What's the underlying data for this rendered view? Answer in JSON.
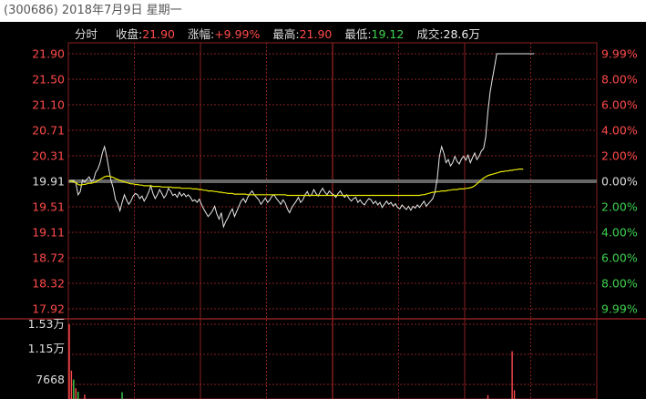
{
  "window": {
    "title": "(300686) 2018年7月9日 星期一"
  },
  "info_bar": {
    "mode": "分时",
    "close_label": "收盘:",
    "close_value": "21.90",
    "change_label": "涨幅:",
    "change_value": "+9.99%",
    "high_label": "最高:",
    "high_value": "21.90",
    "low_label": "最低:",
    "low_value": "19.12",
    "volume_label": "成交:",
    "volume_value": "28.6万"
  },
  "price_axis": [
    "21.90",
    "21.50",
    "21.10",
    "20.71",
    "20.31",
    "19.91",
    "19.51",
    "19.11",
    "18.72",
    "18.32",
    "17.92"
  ],
  "percent_axis": [
    "9.99%",
    "8.00%",
    "6.00%",
    "4.00%",
    "2.00%",
    "0.00%",
    "2.00%",
    "4.00%",
    "6.00%",
    "8.00%",
    "9.99%"
  ],
  "volume_axis": [
    "1.53万",
    "1.15万",
    "7668"
  ],
  "colors": {
    "up": "#ff4a4a",
    "down": "#3fd24f",
    "price_line": "#e8e8e8",
    "avg_line": "#e8e800",
    "grid": "#8a2020",
    "baseline": "#666666"
  },
  "chart_data": {
    "type": "line",
    "prev_close": 19.91,
    "ylim": [
      17.92,
      21.9
    ],
    "minutes_total": 240,
    "series": [
      {
        "values": [
          19.91,
          19.92,
          19.92,
          19.88,
          19.7,
          19.75,
          19.93,
          19.9,
          19.94,
          19.98,
          19.91,
          19.93,
          20.05,
          20.1,
          20.2,
          20.35,
          20.45,
          20.3,
          20.1,
          19.92,
          19.8,
          19.62,
          19.56,
          19.45,
          19.58,
          19.7,
          19.62,
          19.55,
          19.6,
          19.68,
          19.72,
          19.7,
          19.64,
          19.68,
          19.6,
          19.66,
          19.74,
          19.84,
          19.72,
          19.64,
          19.7,
          19.78,
          19.72,
          19.65,
          19.7,
          19.8,
          19.76,
          19.69,
          19.71,
          19.66,
          19.74,
          19.68,
          19.72,
          19.67,
          19.7,
          19.66,
          19.6,
          19.62,
          19.58,
          19.63,
          19.55,
          19.48,
          19.42,
          19.36,
          19.4,
          19.45,
          19.52,
          19.4,
          19.32,
          19.42,
          19.2,
          19.28,
          19.34,
          19.42,
          19.48,
          19.36,
          19.44,
          19.52,
          19.6,
          19.64,
          19.58,
          19.66,
          19.72,
          19.76,
          19.7,
          19.66,
          19.62,
          19.55,
          19.6,
          19.65,
          19.58,
          19.62,
          19.68,
          19.7,
          19.64,
          19.6,
          19.55,
          19.62,
          19.57,
          19.48,
          19.42,
          19.5,
          19.55,
          19.6,
          19.66,
          19.58,
          19.62,
          19.7,
          19.75,
          19.68,
          19.7,
          19.78,
          19.72,
          19.68,
          19.75,
          19.8,
          19.74,
          19.7,
          19.76,
          19.72,
          19.7,
          19.66,
          19.72,
          19.76,
          19.7,
          19.66,
          19.7,
          19.64,
          19.6,
          19.64,
          19.66,
          19.58,
          19.62,
          19.57,
          19.54,
          19.6,
          19.64,
          19.62,
          19.56,
          19.6,
          19.54,
          19.58,
          19.5,
          19.55,
          19.6,
          19.55,
          19.58,
          19.52,
          19.56,
          19.5,
          19.48,
          19.54,
          19.5,
          19.47,
          19.52,
          19.46,
          19.52,
          19.49,
          19.54,
          19.5,
          19.55,
          19.6,
          19.52,
          19.56,
          19.6,
          19.64,
          19.75,
          19.95,
          20.3,
          20.45,
          20.35,
          20.2,
          20.25,
          20.15,
          20.2,
          20.3,
          20.22,
          20.18,
          20.26,
          20.3,
          20.24,
          20.32,
          20.2,
          20.28,
          20.35,
          20.25,
          20.3,
          20.38,
          20.42,
          20.6,
          21.0,
          21.3,
          21.5,
          21.7,
          21.9,
          21.9,
          21.9,
          21.9,
          21.9,
          21.9,
          21.9,
          21.9,
          21.9,
          21.9,
          21.9,
          21.9,
          21.9,
          21.9,
          21.9,
          21.9,
          21.9,
          21.9
        ]
      },
      {
        "values": [
          19.91,
          19.91,
          19.9,
          19.89,
          19.86,
          19.85,
          19.86,
          19.86,
          19.87,
          19.88,
          19.88,
          19.89,
          19.9,
          19.92,
          19.94,
          19.96,
          19.98,
          19.99,
          19.99,
          19.98,
          19.97,
          19.95,
          19.94,
          19.92,
          19.91,
          19.9,
          19.89,
          19.88,
          19.87,
          19.87,
          19.86,
          19.86,
          19.85,
          19.85,
          19.84,
          19.84,
          19.84,
          19.84,
          19.83,
          19.83,
          19.83,
          19.83,
          19.82,
          19.82,
          19.82,
          19.82,
          19.82,
          19.81,
          19.81,
          19.81,
          19.81,
          19.8,
          19.8,
          19.8,
          19.8,
          19.8,
          19.79,
          19.79,
          19.79,
          19.78,
          19.78,
          19.77,
          19.77,
          19.76,
          19.76,
          19.76,
          19.75,
          19.75,
          19.74,
          19.74,
          19.73,
          19.73,
          19.72,
          19.72,
          19.72,
          19.71,
          19.71,
          19.71,
          19.71,
          19.71,
          19.71,
          19.7,
          19.7,
          19.7,
          19.7,
          19.7,
          19.7,
          19.7,
          19.7,
          19.7,
          19.7,
          19.7,
          19.7,
          19.7,
          19.7,
          19.7,
          19.7,
          19.7,
          19.7,
          19.69,
          19.69,
          19.69,
          19.69,
          19.69,
          19.69,
          19.69,
          19.69,
          19.69,
          19.69,
          19.69,
          19.69,
          19.69,
          19.69,
          19.69,
          19.69,
          19.69,
          19.69,
          19.69,
          19.69,
          19.69,
          19.69,
          19.69,
          19.69,
          19.69,
          19.69,
          19.69,
          19.69,
          19.69,
          19.69,
          19.69,
          19.69,
          19.69,
          19.69,
          19.69,
          19.69,
          19.69,
          19.69,
          19.69,
          19.69,
          19.69,
          19.69,
          19.69,
          19.69,
          19.69,
          19.69,
          19.69,
          19.69,
          19.69,
          19.69,
          19.69,
          19.69,
          19.69,
          19.69,
          19.69,
          19.69,
          19.69,
          19.69,
          19.69,
          19.69,
          19.69,
          19.7,
          19.7,
          19.71,
          19.72,
          19.73,
          19.74,
          19.74,
          19.75,
          19.75,
          19.76,
          19.76,
          19.76,
          19.77,
          19.77,
          19.78,
          19.78,
          19.78,
          19.79,
          19.79,
          19.79,
          19.8,
          19.8,
          19.81,
          19.82,
          19.84,
          19.87,
          19.9,
          19.93,
          19.96,
          19.98,
          20.0,
          20.01,
          20.02,
          20.03,
          20.04,
          20.05,
          20.06,
          20.06,
          20.07,
          20.07,
          20.08,
          20.08,
          20.09,
          20.09,
          20.1,
          20.1,
          20.1
        ]
      }
    ],
    "volume": {
      "ylim": [
        0,
        15300
      ],
      "bars": [
        {
          "minute": 0,
          "value": 15300,
          "dir": "up"
        },
        {
          "minute": 1,
          "value": 5800,
          "dir": "up"
        },
        {
          "minute": 2,
          "value": 4000,
          "dir": "down"
        },
        {
          "minute": 3,
          "value": 2200,
          "dir": "up"
        },
        {
          "minute": 4,
          "value": 1500,
          "dir": "down"
        },
        {
          "minute": 7,
          "value": 900,
          "dir": "up"
        },
        {
          "minute": 24,
          "value": 1400,
          "dir": "down"
        },
        {
          "minute": 190,
          "value": 800,
          "dir": "up"
        },
        {
          "minute": 201,
          "value": 9800,
          "dir": "up"
        },
        {
          "minute": 202,
          "value": 1800,
          "dir": "up"
        }
      ]
    }
  }
}
